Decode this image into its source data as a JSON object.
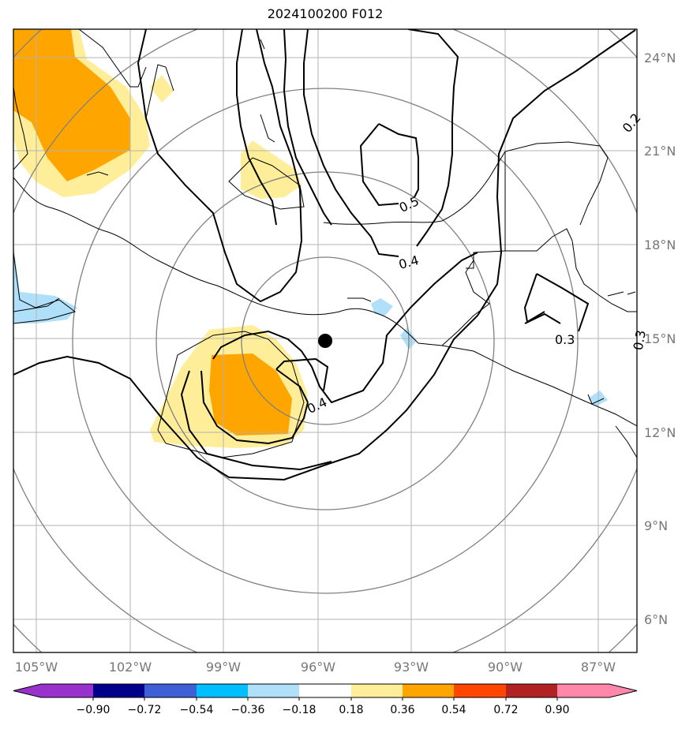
{
  "title": "2024100200 F012",
  "map": {
    "lat_ticks": [
      "24°N",
      "21°N",
      "18°N",
      "15°N",
      "12°N",
      "9°N",
      "6°N"
    ],
    "lon_ticks": [
      "105°W",
      "102°W",
      "99°W",
      "96°W",
      "93°W",
      "90°W",
      "87°W"
    ],
    "storm_center": {
      "lon": "95.7°W",
      "lat": "14.9°N"
    },
    "contour_labels": [
      "0.5",
      "0.4",
      "0.4",
      "0.3",
      "0.2",
      "0.3"
    ],
    "shading_colors": {
      "light_yellow": "#ffee99",
      "orange": "#ffa500",
      "light_blue": "#b0dffa"
    }
  },
  "colorbar": {
    "ticks": [
      "−0.90",
      "−0.72",
      "−0.54",
      "−0.36",
      "−0.18",
      "0.18",
      "0.36",
      "0.54",
      "0.72",
      "0.90"
    ],
    "colors": [
      "#9932cc",
      "#9932cc",
      "#00008b",
      "#3e5fd6",
      "#00bfff",
      "#b0dffa",
      "#ffffff",
      "#ffee99",
      "#ffa500",
      "#ff4500",
      "#b22222",
      "#ff88aa"
    ]
  }
}
